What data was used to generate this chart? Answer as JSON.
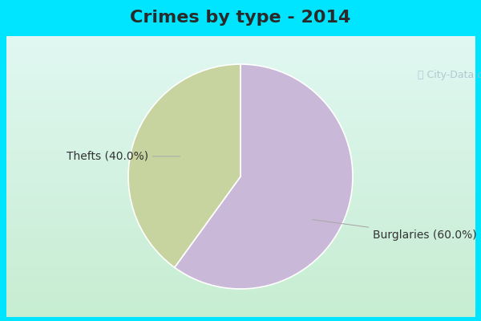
{
  "title": "Crimes by type - 2014",
  "slices": [
    "Burglaries",
    "Thefts"
  ],
  "values": [
    60.0,
    40.0
  ],
  "colors": [
    "#c9b8d8",
    "#c8d4a0"
  ],
  "labels": [
    "Burglaries (60.0%)",
    "Thefts (40.0%)"
  ],
  "border_color": "#00e5ff",
  "bg_colors": [
    "#e8f8f0",
    "#d0f0e8",
    "#c8ead8"
  ],
  "title_fontsize": 16,
  "label_fontsize": 10,
  "watermark": "ⓘ City-Data.com",
  "title_color": "#2a2a2a",
  "label_color": "#333333"
}
